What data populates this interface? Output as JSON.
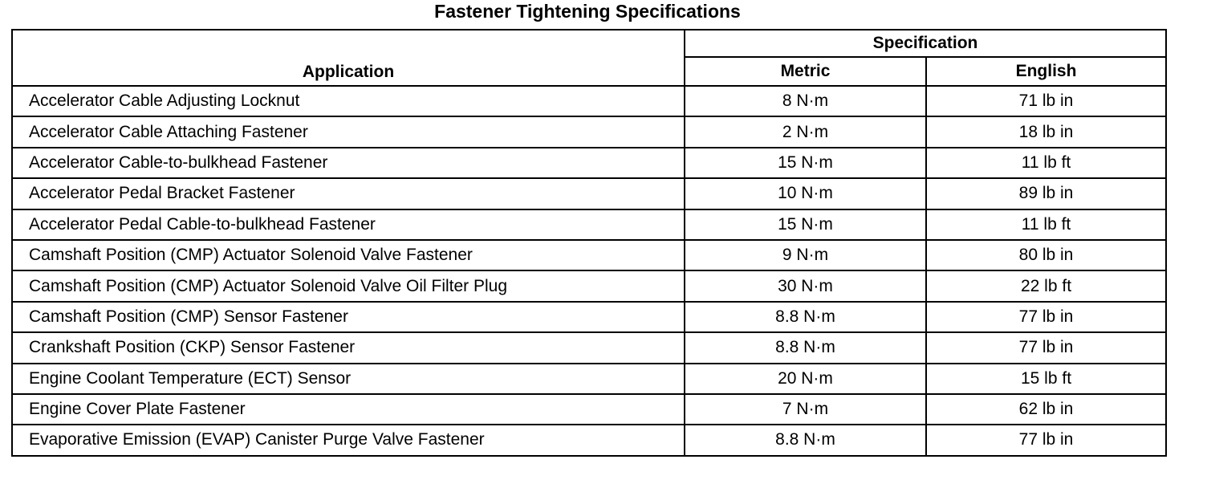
{
  "title": "Fastener Tightening Specifications",
  "headers": {
    "application": "Application",
    "specification": "Specification",
    "metric": "Metric",
    "english": "English"
  },
  "rows": [
    {
      "application": "Accelerator Cable Adjusting Locknut",
      "metric": "8 N·m",
      "english": "71 lb in"
    },
    {
      "application": "Accelerator Cable Attaching Fastener",
      "metric": "2 N·m",
      "english": "18 lb in"
    },
    {
      "application": "Accelerator Cable-to-bulkhead Fastener",
      "metric": "15 N·m",
      "english": "11 lb ft"
    },
    {
      "application": "Accelerator Pedal Bracket Fastener",
      "metric": "10 N·m",
      "english": "89 lb in"
    },
    {
      "application": "Accelerator Pedal Cable-to-bulkhead Fastener",
      "metric": "15 N·m",
      "english": "11 lb ft"
    },
    {
      "application": "Camshaft Position (CMP) Actuator Solenoid Valve Fastener",
      "metric": "9 N·m",
      "english": "80 lb in"
    },
    {
      "application": "Camshaft Position (CMP) Actuator Solenoid Valve Oil Filter Plug",
      "metric": "30 N·m",
      "english": "22 lb ft"
    },
    {
      "application": "Camshaft Position (CMP) Sensor Fastener",
      "metric": "8.8 N·m",
      "english": "77 lb in"
    },
    {
      "application": "Crankshaft Position (CKP) Sensor Fastener",
      "metric": "8.8 N·m",
      "english": "77 lb in"
    },
    {
      "application": "Engine Coolant Temperature (ECT) Sensor",
      "metric": "20 N·m",
      "english": "15 lb ft"
    },
    {
      "application": "Engine Cover Plate Fastener",
      "metric": "7 N·m",
      "english": "62 lb in"
    },
    {
      "application": "Evaporative Emission (EVAP) Canister Purge Valve Fastener",
      "metric": "8.8 N·m",
      "english": "77 lb in"
    }
  ]
}
